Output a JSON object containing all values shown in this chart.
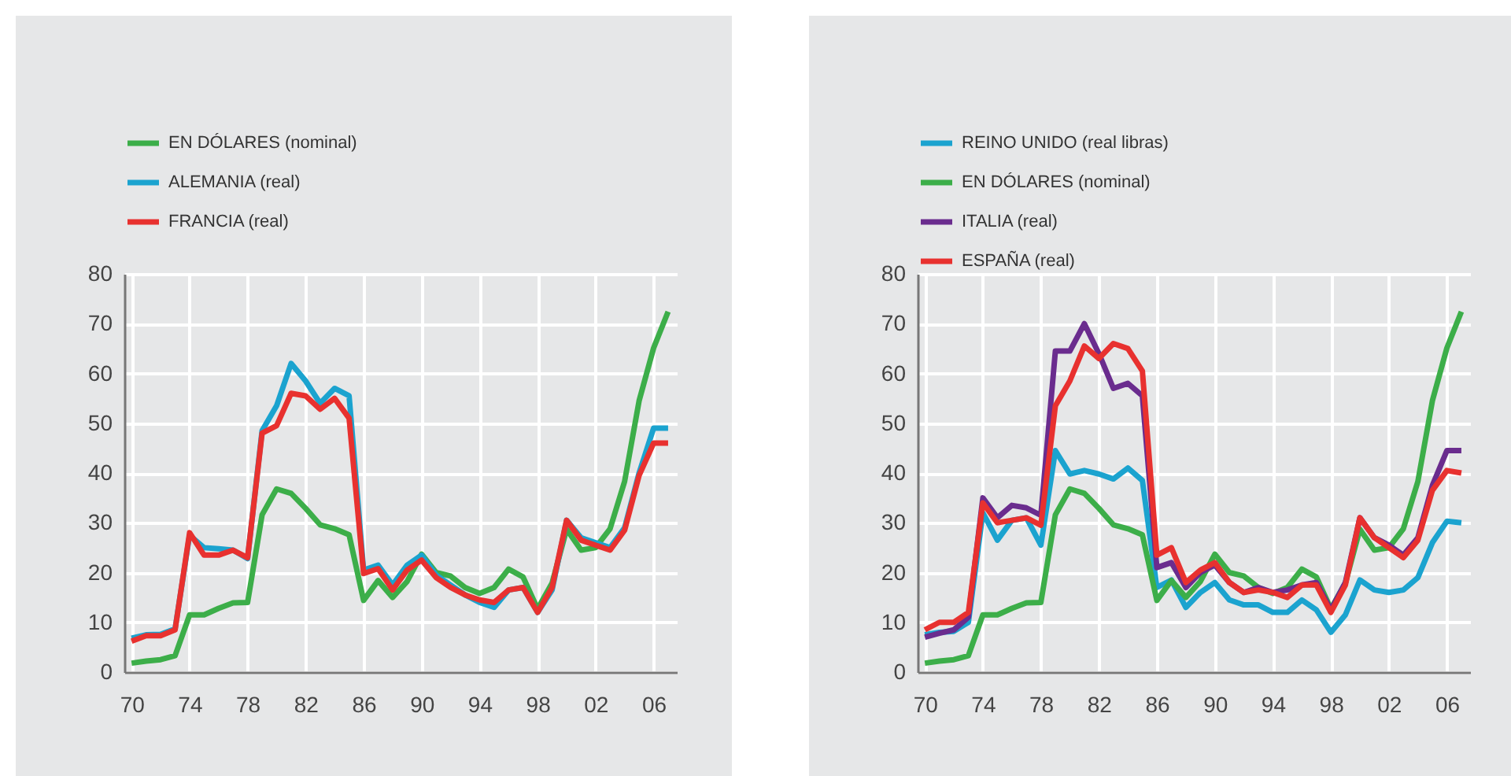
{
  "chart_data": [
    {
      "type": "line",
      "x": [
        1970,
        1971,
        1972,
        1973,
        1974,
        1975,
        1976,
        1977,
        1978,
        1979,
        1980,
        1981,
        1982,
        1983,
        1984,
        1985,
        1986,
        1987,
        1988,
        1989,
        1990,
        1991,
        1992,
        1993,
        1994,
        1995,
        1996,
        1997,
        1998,
        1999,
        2000,
        2001,
        2002,
        2003,
        2004,
        2005,
        2006,
        2007
      ],
      "series": [
        {
          "name": "EN DÓLARES (nominal)",
          "color": "#3cae49",
          "values": [
            1.8,
            2.2,
            2.5,
            3.3,
            11.5,
            11.5,
            12.8,
            13.9,
            14.0,
            31.6,
            36.8,
            35.9,
            32.9,
            29.6,
            28.8,
            27.6,
            14.4,
            18.4,
            15.0,
            18.2,
            23.7,
            20.0,
            19.3,
            17.0,
            15.8,
            17.0,
            20.7,
            19.1,
            12.7,
            17.9,
            28.7,
            24.5,
            25.0,
            28.8,
            38.3,
            54.5,
            65.1,
            72.4
          ]
        },
        {
          "name": "ALEMANIA (real)",
          "color": "#1ba3cf",
          "values": [
            6.8,
            7.5,
            7.6,
            8.7,
            27.5,
            25,
            24.8,
            24.5,
            22.8,
            48.5,
            53.5,
            62,
            58.5,
            54,
            57,
            55.5,
            20.5,
            21.5,
            17.5,
            21.5,
            23.5,
            19.5,
            17.5,
            15.5,
            14,
            13,
            16.5,
            17,
            12,
            16.5,
            30.5,
            27,
            26,
            25,
            29,
            40,
            49,
            49
          ]
        },
        {
          "name": "FRANCIA (real)",
          "color": "#e8312f",
          "values": [
            6.2,
            7.3,
            7.3,
            8.5,
            28,
            23.5,
            23.5,
            24.5,
            23,
            48,
            49.5,
            56,
            55.5,
            52.8,
            55,
            51,
            19.8,
            20.8,
            16.5,
            20.5,
            22.5,
            19,
            17,
            15.5,
            14.5,
            14,
            16.5,
            17,
            12,
            17,
            30.5,
            26.5,
            25.5,
            24.5,
            28.5,
            39.5,
            46,
            46
          ]
        }
      ],
      "xlim": [
        1969.5,
        2007.6
      ],
      "xticks": [
        {
          "value": 1970,
          "label": "70"
        },
        {
          "value": 1974,
          "label": "74"
        },
        {
          "value": 1978,
          "label": "78"
        },
        {
          "value": 1982,
          "label": "82"
        },
        {
          "value": 1986,
          "label": "86"
        },
        {
          "value": 1990,
          "label": "90"
        },
        {
          "value": 1994,
          "label": "94"
        },
        {
          "value": 1998,
          "label": "98"
        },
        {
          "value": 2002,
          "label": "02"
        },
        {
          "value": 2006,
          "label": "06"
        }
      ],
      "ylim": [
        0,
        80
      ],
      "yticks": [
        0,
        10,
        20,
        30,
        40,
        50,
        60,
        70,
        80
      ],
      "grid": true,
      "legend": "top left"
    },
    {
      "type": "line",
      "x": [
        1970,
        1971,
        1972,
        1973,
        1974,
        1975,
        1976,
        1977,
        1978,
        1979,
        1980,
        1981,
        1982,
        1983,
        1984,
        1985,
        1986,
        1987,
        1988,
        1989,
        1990,
        1991,
        1992,
        1993,
        1994,
        1995,
        1996,
        1997,
        1998,
        1999,
        2000,
        2001,
        2002,
        2003,
        2004,
        2005,
        2006,
        2007
      ],
      "series": [
        {
          "name": "REINO UNIDO (real libras)",
          "color": "#1ba3cf",
          "values": [
            7.5,
            8,
            8.2,
            10,
            32,
            26.5,
            30.5,
            31,
            25.5,
            44.5,
            39.8,
            40.5,
            39.8,
            38.8,
            41,
            38.5,
            17,
            18.5,
            13,
            16,
            18,
            14.5,
            13.5,
            13.5,
            12,
            12,
            14.5,
            12.5,
            8,
            11.5,
            18.5,
            16.5,
            16,
            16.5,
            19,
            26,
            30.3,
            30
          ]
        },
        {
          "name": "EN DÓLARES (nominal)",
          "color": "#3cae49",
          "values": [
            1.8,
            2.2,
            2.5,
            3.3,
            11.5,
            11.5,
            12.8,
            13.9,
            14.0,
            31.6,
            36.8,
            35.9,
            32.9,
            29.6,
            28.8,
            27.6,
            14.4,
            18.4,
            15.0,
            18.2,
            23.7,
            20.0,
            19.3,
            17.0,
            15.8,
            17.0,
            20.7,
            19.1,
            12.7,
            17.9,
            28.7,
            24.5,
            25.0,
            28.8,
            38.3,
            54.5,
            65.1,
            72.4
          ]
        },
        {
          "name": "ITALIA (real)",
          "color": "#6a2c8e",
          "values": [
            7,
            7.8,
            8.5,
            11,
            35,
            31,
            33.5,
            33,
            31.5,
            64.5,
            64.5,
            70,
            64,
            57,
            58,
            55.5,
            21,
            22,
            17,
            20,
            21.5,
            18,
            16,
            17,
            16,
            16.5,
            17.5,
            18,
            12.5,
            18,
            31,
            27,
            25.5,
            23.5,
            27,
            37.5,
            44.5,
            44.5
          ]
        },
        {
          "name": "ESPAÑA (real)",
          "color": "#e8312f",
          "values": [
            8.5,
            10,
            10,
            12,
            34,
            30,
            30.5,
            31,
            29.5,
            53.5,
            58.5,
            65.5,
            63,
            66,
            65,
            60.5,
            23.5,
            25,
            18,
            20.5,
            22,
            18,
            16,
            16.5,
            16,
            15,
            17.5,
            17.5,
            12,
            17.5,
            31,
            27,
            25,
            23,
            26.5,
            36.5,
            40.5,
            40
          ]
        }
      ],
      "xlim": [
        1969.5,
        2007.6
      ],
      "xticks": [
        {
          "value": 1970,
          "label": "70"
        },
        {
          "value": 1974,
          "label": "74"
        },
        {
          "value": 1978,
          "label": "78"
        },
        {
          "value": 1982,
          "label": "82"
        },
        {
          "value": 1986,
          "label": "86"
        },
        {
          "value": 1990,
          "label": "90"
        },
        {
          "value": 1994,
          "label": "94"
        },
        {
          "value": 1998,
          "label": "98"
        },
        {
          "value": 2002,
          "label": "02"
        },
        {
          "value": 2006,
          "label": "06"
        }
      ],
      "ylim": [
        0,
        80
      ],
      "yticks": [
        0,
        10,
        20,
        30,
        40,
        50,
        60,
        70,
        80
      ],
      "grid": true,
      "legend": "top left"
    }
  ]
}
